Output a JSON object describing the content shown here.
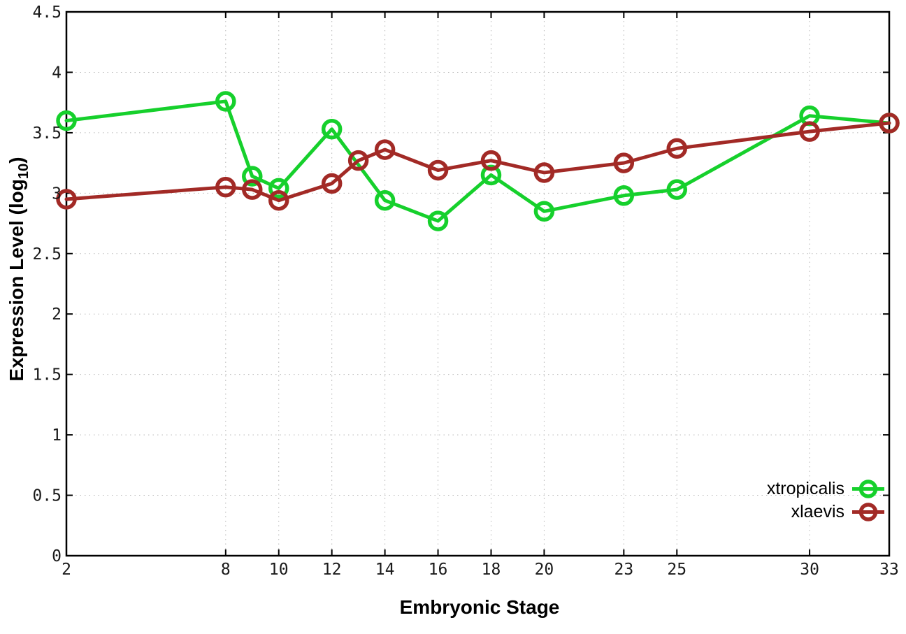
{
  "chart_data": {
    "type": "line",
    "title": "",
    "xlabel": "Embryonic Stage",
    "ylabel": "Expression Level (log10)",
    "ylabel_parts": {
      "text": "Expression Level (log",
      "sub": "10",
      "suffix": ")"
    },
    "xlim": [
      2,
      33
    ],
    "ylim": [
      0,
      4.5
    ],
    "xticks": [
      2,
      8,
      10,
      12,
      14,
      16,
      18,
      20,
      23,
      25,
      30,
      33
    ],
    "yticks": [
      0,
      0.5,
      1,
      1.5,
      2,
      2.5,
      3,
      3.5,
      4,
      4.5
    ],
    "ytick_labels": [
      "0",
      "0.5",
      "1",
      "1.5",
      "2",
      "2.5",
      "3",
      "3.5",
      "4",
      "4.5"
    ],
    "grid": true,
    "grid_style": "dotted",
    "legend_position": "bottom-right",
    "series": [
      {
        "name": "xtropicalis",
        "color": "#16d02c",
        "marker": "open-circle",
        "x": [
          2,
          8,
          9,
          10,
          12,
          14,
          16,
          18,
          20,
          23,
          25,
          30,
          33
        ],
        "y": [
          3.6,
          3.76,
          3.14,
          3.04,
          3.53,
          2.94,
          2.77,
          3.15,
          2.85,
          2.98,
          3.03,
          3.64,
          3.58
        ]
      },
      {
        "name": "xlaevis",
        "color": "#a22a26",
        "marker": "open-circle",
        "x": [
          2,
          8,
          9,
          10,
          12,
          13,
          14,
          16,
          18,
          20,
          23,
          25,
          30,
          33
        ],
        "y": [
          2.95,
          3.05,
          3.03,
          2.94,
          3.08,
          3.27,
          3.36,
          3.19,
          3.27,
          3.17,
          3.25,
          3.37,
          3.51,
          3.58
        ]
      }
    ]
  },
  "style": {
    "background": "#ffffff",
    "border_color": "#000000",
    "grid_color": "#b5b5b5",
    "tick_color": "#000000",
    "tick_label_color": "#1a1a1a",
    "axis_title_color": "#000000"
  }
}
